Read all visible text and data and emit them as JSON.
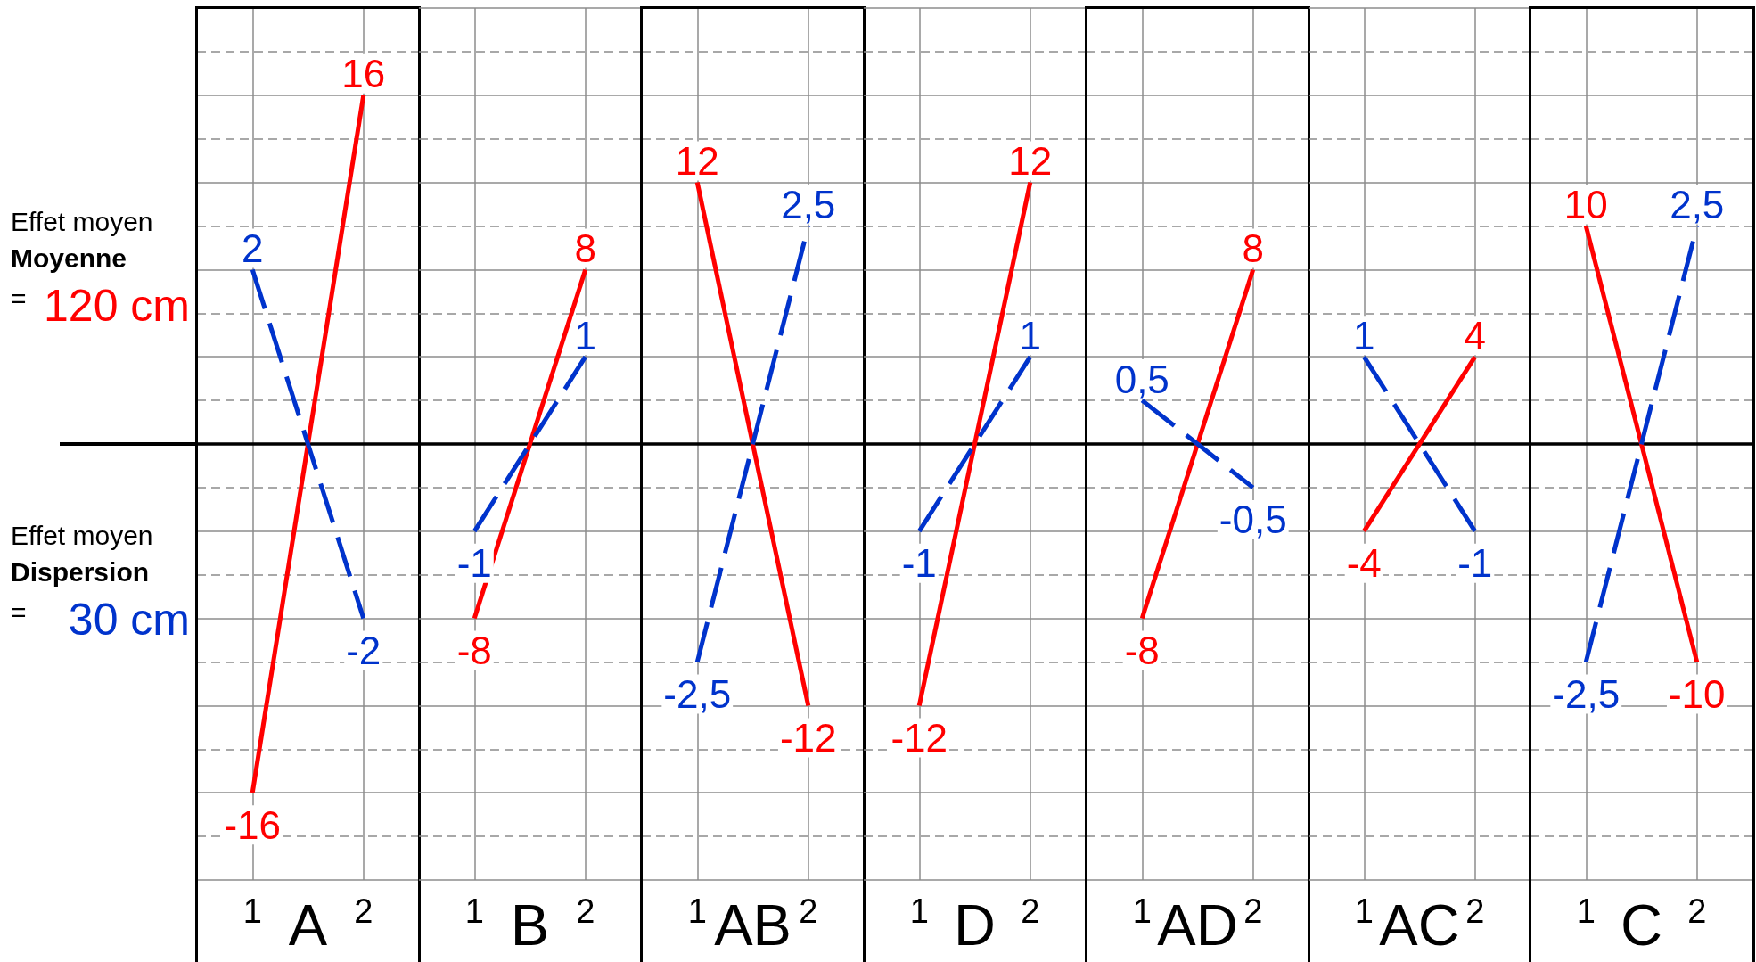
{
  "chart_data": [
    {
      "type": "other",
      "annotations": [
        "Effet moyen",
        "Moyenne",
        "=",
        "120 cm",
        "Effet moyen",
        "Dispersion",
        "=",
        "30 cm"
      ]
    },
    {
      "type": "line",
      "xlabel": "A",
      "categories": [
        "1",
        "2"
      ],
      "ylim": [
        -20,
        20
      ],
      "yticks": [
        {
          "value": -20,
          "label": null
        },
        {
          "value": -16,
          "label": null
        },
        {
          "value": -12,
          "label": null
        },
        {
          "value": -8,
          "label": null
        },
        {
          "value": -4,
          "label": null
        },
        {
          "value": 0,
          "label": null
        },
        {
          "value": 4,
          "label": null
        },
        {
          "value": 8,
          "label": null
        },
        {
          "value": 12,
          "label": null
        },
        {
          "value": 16,
          "label": null
        },
        {
          "value": 20,
          "label": null
        }
      ],
      "y2lim": [
        -5,
        5
      ],
      "tick_labels": "x",
      "grid": true,
      "series": [
        {
          "color": "#ff0000",
          "line_style": "solid",
          "values": [
            -16,
            16
          ],
          "value_labels": [
            "-16",
            "16"
          ]
        },
        {
          "color": "#0033cc",
          "line_style": "dashed",
          "axis": "y2",
          "values": [
            2,
            -2
          ],
          "value_labels": [
            "2",
            "-2"
          ]
        }
      ]
    },
    {
      "type": "line",
      "xlabel": "B",
      "categories": [
        "1",
        "2"
      ],
      "ylim": [
        -20,
        20
      ],
      "yticks": [
        {
          "value": -20,
          "label": null
        },
        {
          "value": -16,
          "label": null
        },
        {
          "value": -12,
          "label": null
        },
        {
          "value": -8,
          "label": null
        },
        {
          "value": -4,
          "label": null
        },
        {
          "value": 0,
          "label": null
        },
        {
          "value": 4,
          "label": null
        },
        {
          "value": 8,
          "label": null
        },
        {
          "value": 12,
          "label": null
        },
        {
          "value": 16,
          "label": null
        },
        {
          "value": 20,
          "label": null
        }
      ],
      "y2lim": [
        -5,
        5
      ],
      "tick_labels": "x",
      "grid": true,
      "series": [
        {
          "color": "#ff0000",
          "line_style": "solid",
          "values": [
            -8,
            8
          ],
          "value_labels": [
            "-8",
            "8"
          ]
        },
        {
          "color": "#0033cc",
          "line_style": "dashed",
          "axis": "y2",
          "values": [
            -1,
            1
          ],
          "value_labels": [
            "-1",
            "1"
          ]
        }
      ]
    },
    {
      "type": "line",
      "xlabel": "AB",
      "categories": [
        "1",
        "2"
      ],
      "ylim": [
        -20,
        20
      ],
      "yticks": [
        {
          "value": -20,
          "label": null
        },
        {
          "value": -16,
          "label": null
        },
        {
          "value": -12,
          "label": null
        },
        {
          "value": -8,
          "label": null
        },
        {
          "value": -4,
          "label": null
        },
        {
          "value": 0,
          "label": null
        },
        {
          "value": 4,
          "label": null
        },
        {
          "value": 8,
          "label": null
        },
        {
          "value": 12,
          "label": null
        },
        {
          "value": 16,
          "label": null
        },
        {
          "value": 20,
          "label": null
        }
      ],
      "y2lim": [
        -5,
        5
      ],
      "tick_labels": "x",
      "grid": true,
      "series": [
        {
          "color": "#ff0000",
          "line_style": "solid",
          "values": [
            12,
            -12
          ],
          "value_labels": [
            "12",
            "-12"
          ]
        },
        {
          "color": "#0033cc",
          "line_style": "dashed",
          "axis": "y2",
          "values": [
            -2.5,
            2.5
          ],
          "value_labels": [
            "-2,5",
            "2,5"
          ]
        }
      ]
    },
    {
      "type": "line",
      "xlabel": "D",
      "categories": [
        "1",
        "2"
      ],
      "ylim": [
        -20,
        20
      ],
      "yticks": [
        {
          "value": -20,
          "label": null
        },
        {
          "value": -16,
          "label": null
        },
        {
          "value": -12,
          "label": null
        },
        {
          "value": -8,
          "label": null
        },
        {
          "value": -4,
          "label": null
        },
        {
          "value": 0,
          "label": null
        },
        {
          "value": 4,
          "label": null
        },
        {
          "value": 8,
          "label": null
        },
        {
          "value": 12,
          "label": null
        },
        {
          "value": 16,
          "label": null
        },
        {
          "value": 20,
          "label": null
        }
      ],
      "y2lim": [
        -5,
        5
      ],
      "tick_labels": "x",
      "grid": true,
      "series": [
        {
          "color": "#ff0000",
          "line_style": "solid",
          "values": [
            -12,
            12
          ],
          "value_labels": [
            "-12",
            "12"
          ]
        },
        {
          "color": "#0033cc",
          "line_style": "dashed",
          "axis": "y2",
          "values": [
            -1,
            1
          ],
          "value_labels": [
            "-1",
            "1"
          ]
        }
      ]
    },
    {
      "type": "line",
      "xlabel": "AD",
      "categories": [
        "1",
        "2"
      ],
      "ylim": [
        -20,
        20
      ],
      "yticks": [
        {
          "value": -20,
          "label": null
        },
        {
          "value": -16,
          "label": null
        },
        {
          "value": -12,
          "label": null
        },
        {
          "value": -8,
          "label": null
        },
        {
          "value": -4,
          "label": null
        },
        {
          "value": 0,
          "label": null
        },
        {
          "value": 4,
          "label": null
        },
        {
          "value": 8,
          "label": null
        },
        {
          "value": 12,
          "label": null
        },
        {
          "value": 16,
          "label": null
        },
        {
          "value": 20,
          "label": null
        }
      ],
      "y2lim": [
        -5,
        5
      ],
      "tick_labels": "x",
      "grid": true,
      "series": [
        {
          "color": "#ff0000",
          "line_style": "solid",
          "values": [
            -8,
            8
          ],
          "value_labels": [
            "-8",
            "8"
          ]
        },
        {
          "color": "#0033cc",
          "line_style": "dashed",
          "axis": "y2",
          "values": [
            0.5,
            -0.5
          ],
          "value_labels": [
            "0,5",
            "-0,5"
          ]
        }
      ]
    },
    {
      "type": "line",
      "xlabel": "AC",
      "categories": [
        "1",
        "2"
      ],
      "ylim": [
        -20,
        20
      ],
      "yticks": [
        {
          "value": -20,
          "label": null
        },
        {
          "value": -16,
          "label": null
        },
        {
          "value": -12,
          "label": null
        },
        {
          "value": -8,
          "label": null
        },
        {
          "value": -4,
          "label": null
        },
        {
          "value": 0,
          "label": null
        },
        {
          "value": 4,
          "label": null
        },
        {
          "value": 8,
          "label": null
        },
        {
          "value": 12,
          "label": null
        },
        {
          "value": 16,
          "label": null
        },
        {
          "value": 20,
          "label": null
        }
      ],
      "y2lim": [
        -5,
        5
      ],
      "tick_labels": "x",
      "grid": true,
      "series": [
        {
          "color": "#ff0000",
          "line_style": "solid",
          "values": [
            -4,
            4
          ],
          "value_labels": [
            "-4",
            "4"
          ]
        },
        {
          "color": "#0033cc",
          "line_style": "dashed",
          "axis": "y2",
          "values": [
            1,
            -1
          ],
          "value_labels": [
            "1",
            "-1"
          ]
        }
      ]
    },
    {
      "type": "line",
      "xlabel": "C",
      "categories": [
        "1",
        "2"
      ],
      "ylim": [
        -20,
        20
      ],
      "yticks": [
        {
          "value": -20,
          "label": null
        },
        {
          "value": -16,
          "label": null
        },
        {
          "value": -12,
          "label": null
        },
        {
          "value": -8,
          "label": null
        },
        {
          "value": -4,
          "label": null
        },
        {
          "value": 0,
          "label": null
        },
        {
          "value": 4,
          "label": null
        },
        {
          "value": 8,
          "label": null
        },
        {
          "value": 12,
          "label": null
        },
        {
          "value": 16,
          "label": null
        },
        {
          "value": 20,
          "label": null
        }
      ],
      "y2lim": [
        -5,
        5
      ],
      "tick_labels": "x",
      "grid": true,
      "series": [
        {
          "color": "#ff0000",
          "line_style": "solid",
          "values": [
            10,
            -10
          ],
          "value_labels": [
            "10",
            "-10"
          ]
        },
        {
          "color": "#0033cc",
          "line_style": "dashed",
          "axis": "y2",
          "values": [
            -2.5,
            2.5
          ],
          "value_labels": [
            "-2,5",
            "2,5"
          ]
        }
      ]
    }
  ]
}
